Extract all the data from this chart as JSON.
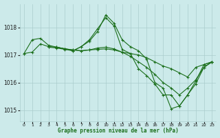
{
  "bg_color": "#cceaea",
  "grid_color": "#aacccc",
  "line_color": "#1a6e1a",
  "xlabel": "Graphe pression niveau de la mer (hPa)",
  "xlim": [
    -0.5,
    23.5
  ],
  "ylim": [
    1014.6,
    1018.85
  ],
  "yticks": [
    1015,
    1016,
    1017,
    1018
  ],
  "xticks": [
    0,
    1,
    2,
    3,
    4,
    5,
    6,
    7,
    8,
    9,
    10,
    11,
    12,
    13,
    14,
    15,
    16,
    17,
    18,
    19,
    20,
    21,
    22,
    23
  ],
  "series": [
    {
      "x": [
        0,
        1,
        2,
        3,
        4,
        5,
        6,
        7,
        8,
        9,
        10,
        11,
        12,
        13,
        14,
        15,
        16,
        17,
        18,
        19,
        20,
        21,
        22,
        23
      ],
      "y": [
        1017.05,
        1017.55,
        1017.6,
        1017.35,
        1017.28,
        1017.22,
        1017.15,
        1017.3,
        1017.5,
        1017.85,
        1018.45,
        1018.15,
        1017.55,
        1017.3,
        1017.15,
        1016.85,
        1016.0,
        1015.8,
        1015.05,
        1015.15,
        1015.55,
        1016.05,
        1016.65,
        1016.75
      ]
    },
    {
      "x": [
        0,
        1,
        2,
        3,
        4,
        5,
        6,
        7,
        8,
        9,
        10,
        11,
        12,
        13,
        14,
        15,
        16,
        17,
        18,
        19,
        20,
        21,
        22,
        23
      ],
      "y": [
        1017.05,
        1017.1,
        1017.4,
        1017.3,
        1017.28,
        1017.22,
        1017.18,
        1017.15,
        1017.18,
        1017.2,
        1017.22,
        1017.18,
        1017.1,
        1017.05,
        1017.0,
        1016.9,
        1016.75,
        1016.6,
        1016.5,
        1016.35,
        1016.2,
        1016.55,
        1016.65,
        1016.75
      ]
    },
    {
      "x": [
        3,
        4,
        5,
        6,
        7,
        8,
        9,
        10,
        11,
        12,
        13,
        14,
        15,
        16,
        17,
        18,
        19,
        20,
        21,
        22,
        23
      ],
      "y": [
        1017.28,
        1017.25,
        1017.2,
        1017.15,
        1017.3,
        1017.55,
        1017.95,
        1018.35,
        1018.05,
        1017.2,
        1017.05,
        1016.5,
        1016.25,
        1015.95,
        1015.55,
        1015.55,
        1015.15,
        1015.55,
        1015.95,
        1016.55,
        1016.75
      ]
    },
    {
      "x": [
        4,
        5,
        6,
        7,
        8,
        9,
        10,
        11,
        12,
        13,
        14,
        15,
        16,
        17,
        18,
        19,
        20,
        21,
        22,
        23
      ],
      "y": [
        1017.28,
        1017.22,
        1017.18,
        1017.15,
        1017.18,
        1017.25,
        1017.28,
        1017.22,
        1017.1,
        1016.95,
        1016.75,
        1016.55,
        1016.3,
        1016.0,
        1015.8,
        1015.55,
        1015.8,
        1016.1,
        1016.55,
        1016.75
      ]
    }
  ]
}
